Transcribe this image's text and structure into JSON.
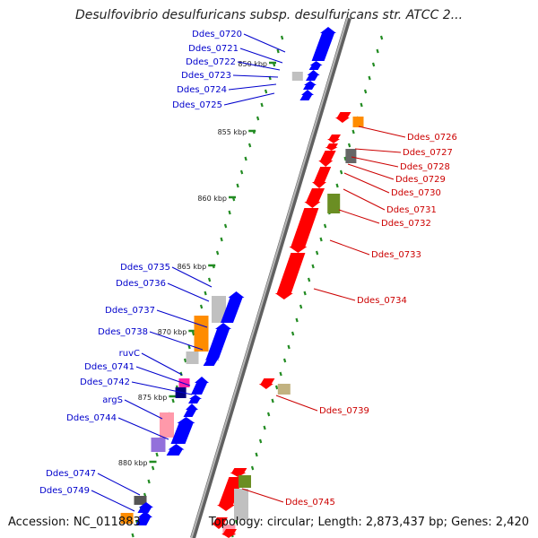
{
  "title": "Desulfovibrio desulfuricans subsp. desulfuricans str. ATCC 2...",
  "footer": {
    "accession": "Accession: NC_011883",
    "summary": "Topology: circular; Length: 2,873,437 bp; Genes: 2,420"
  },
  "colors": {
    "forward_strand": "#0000ff",
    "reverse_strand": "#ff0000",
    "backbone": "#808080",
    "ticks": "#228b22",
    "orange_feature": "#ff8c00",
    "olive_feature": "#6b8e23",
    "gray_feature": "#c0c0c0",
    "pink_feature": "#ff99aa",
    "magenta_feature": "#ff22aa",
    "navy_feature": "#000080",
    "lavender_feature": "#9370db"
  },
  "scale_labels": [
    "850 kbp",
    "855 kbp",
    "860 kbp",
    "865 kbp",
    "870 kbp",
    "875 kbp",
    "880 kbp"
  ],
  "forward_gene_labels": [
    "Ddes_0720",
    "Ddes_0721",
    "Ddes_0722",
    "Ddes_0723",
    "Ddes_0724",
    "Ddes_0725",
    "Ddes_0735",
    "Ddes_0736",
    "Ddes_0737",
    "Ddes_0738",
    "ruvC",
    "Ddes_0741",
    "Ddes_0742",
    "argS",
    "Ddes_0744",
    "Ddes_0747",
    "Ddes_0749"
  ],
  "reverse_gene_labels": [
    "Ddes_0726",
    "Ddes_0727",
    "Ddes_0728",
    "Ddes_0729",
    "Ddes_0730",
    "Ddes_0731",
    "Ddes_0732",
    "Ddes_0733",
    "Ddes_0734",
    "Ddes_0739",
    "Ddes_0745"
  ]
}
